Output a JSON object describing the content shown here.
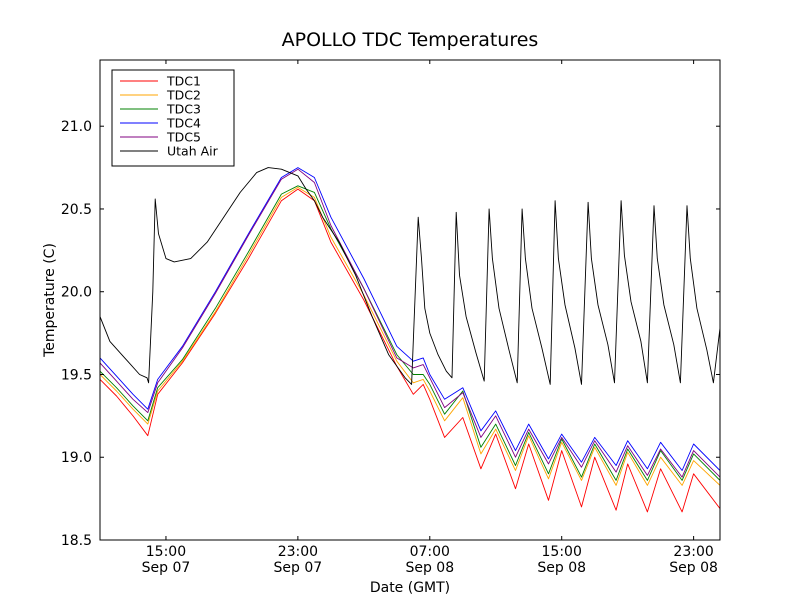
{
  "chart_data": {
    "type": "line",
    "title": "APOLLO TDC Temperatures",
    "xlabel": "Date (GMT)",
    "ylabel": "Temperature (C)",
    "xlim": [
      11.0,
      48.6
    ],
    "ylim": [
      18.5,
      21.4
    ],
    "grid": false,
    "legend_position": "top-left",
    "yticks": [
      {
        "value": 18.5,
        "label": "18.5"
      },
      {
        "value": 19.0,
        "label": "19.0"
      },
      {
        "value": 19.5,
        "label": "19.5"
      },
      {
        "value": 20.0,
        "label": "20.0"
      },
      {
        "value": 20.5,
        "label": "20.5"
      },
      {
        "value": 21.0,
        "label": "21.0"
      }
    ],
    "xticks": [
      {
        "value": 15,
        "time": "15:00",
        "date": "Sep 07"
      },
      {
        "value": 23,
        "time": "23:00",
        "date": "Sep 07"
      },
      {
        "value": 31,
        "time": "07:00",
        "date": "Sep 08"
      },
      {
        "value": 39,
        "time": "15:00",
        "date": "Sep 08"
      },
      {
        "value": 47,
        "time": "23:00",
        "date": "Sep 08"
      }
    ],
    "series": [
      {
        "name": "TDC1",
        "color": "#ff0000",
        "x": [
          11.0,
          12.0,
          13.0,
          13.9,
          14.5,
          16.0,
          18.0,
          20.0,
          22.0,
          23.0,
          24.0,
          25.0,
          27.0,
          29.0,
          30.0,
          30.6,
          31.0,
          31.9,
          33.0,
          34.1,
          35.0,
          36.2,
          37.0,
          38.2,
          39.0,
          40.2,
          41.0,
          42.3,
          43.0,
          44.2,
          45.0,
          46.3,
          47.0,
          48.6
        ],
        "y": [
          19.47,
          19.37,
          19.25,
          19.13,
          19.38,
          19.57,
          19.87,
          20.2,
          20.55,
          20.62,
          20.55,
          20.3,
          19.95,
          19.55,
          19.38,
          19.44,
          19.35,
          19.12,
          19.24,
          18.93,
          19.14,
          18.81,
          19.08,
          18.74,
          19.04,
          18.7,
          19.0,
          18.68,
          18.96,
          18.67,
          18.93,
          18.67,
          18.9,
          18.69
        ]
      },
      {
        "name": "TDC2",
        "color": "#ffa500",
        "x": [
          11.0,
          12.0,
          13.0,
          13.9,
          14.5,
          16.0,
          18.0,
          20.0,
          22.0,
          23.0,
          24.0,
          25.0,
          27.0,
          29.0,
          30.0,
          30.6,
          31.0,
          31.9,
          33.0,
          34.1,
          35.0,
          36.2,
          37.0,
          38.2,
          39.0,
          40.2,
          41.0,
          42.3,
          43.0,
          44.2,
          45.0,
          46.3,
          47.0,
          48.6
        ],
        "y": [
          19.5,
          19.4,
          19.29,
          19.2,
          19.4,
          19.58,
          19.88,
          20.22,
          20.57,
          20.63,
          20.57,
          20.33,
          19.98,
          19.58,
          19.45,
          19.47,
          19.4,
          19.22,
          19.36,
          19.02,
          19.17,
          18.92,
          19.13,
          18.87,
          19.09,
          18.86,
          19.06,
          18.83,
          19.03,
          18.83,
          19.0,
          18.83,
          18.98,
          18.83
        ]
      },
      {
        "name": "TDC3",
        "color": "#008000",
        "x": [
          11.0,
          12.0,
          13.0,
          13.9,
          14.5,
          16.0,
          18.0,
          20.0,
          22.0,
          23.0,
          24.0,
          25.0,
          27.0,
          29.0,
          30.0,
          30.6,
          31.0,
          31.9,
          33.0,
          34.1,
          35.0,
          36.2,
          37.0,
          38.2,
          39.0,
          40.2,
          41.0,
          42.3,
          43.0,
          44.2,
          45.0,
          46.3,
          47.0,
          48.6
        ],
        "y": [
          19.52,
          19.42,
          19.31,
          19.22,
          19.42,
          19.59,
          19.9,
          20.24,
          20.59,
          20.64,
          20.6,
          20.38,
          20.02,
          19.62,
          19.5,
          19.5,
          19.44,
          19.26,
          19.4,
          19.06,
          19.2,
          18.95,
          19.15,
          18.9,
          19.11,
          18.88,
          19.08,
          18.86,
          19.05,
          18.86,
          19.04,
          18.86,
          19.02,
          18.86
        ]
      },
      {
        "name": "TDC4",
        "color": "#0000ff",
        "x": [
          11.0,
          12.0,
          13.0,
          13.9,
          14.5,
          16.0,
          18.0,
          20.0,
          22.0,
          23.0,
          24.0,
          25.0,
          27.0,
          29.0,
          30.0,
          30.6,
          31.0,
          31.9,
          33.0,
          34.1,
          35.0,
          36.2,
          37.0,
          38.2,
          39.0,
          40.2,
          41.0,
          42.3,
          43.0,
          44.2,
          45.0,
          46.3,
          47.0,
          48.6
        ],
        "y": [
          19.6,
          19.49,
          19.38,
          19.29,
          19.47,
          19.67,
          20.0,
          20.35,
          20.69,
          20.75,
          20.69,
          20.45,
          20.08,
          19.67,
          19.58,
          19.6,
          19.5,
          19.35,
          19.42,
          19.16,
          19.28,
          19.04,
          19.2,
          18.99,
          19.14,
          18.97,
          19.12,
          18.95,
          19.1,
          18.93,
          19.09,
          18.92,
          19.08,
          18.92
        ]
      },
      {
        "name": "TDC5",
        "color": "#800080",
        "x": [
          11.0,
          12.0,
          13.0,
          13.9,
          14.5,
          16.0,
          18.0,
          20.0,
          22.0,
          23.0,
          24.0,
          25.0,
          27.0,
          29.0,
          30.0,
          30.6,
          31.0,
          31.9,
          33.0,
          34.1,
          35.0,
          36.2,
          37.0,
          38.2,
          39.0,
          40.2,
          41.0,
          42.3,
          43.0,
          44.2,
          45.0,
          46.3,
          47.0,
          48.6
        ],
        "y": [
          19.57,
          19.46,
          19.35,
          19.27,
          19.45,
          19.66,
          19.99,
          20.34,
          20.68,
          20.74,
          20.66,
          20.4,
          20.02,
          19.6,
          19.54,
          19.56,
          19.48,
          19.3,
          19.39,
          19.12,
          19.25,
          19.0,
          19.17,
          18.96,
          19.12,
          18.94,
          19.1,
          18.91,
          19.07,
          18.89,
          19.05,
          18.88,
          19.04,
          18.88
        ]
      },
      {
        "name": "Utah Air",
        "color": "#000000",
        "x": [
          11.0,
          11.6,
          12.5,
          13.4,
          13.85,
          13.95,
          14.2,
          14.35,
          14.55,
          15.0,
          15.5,
          16.5,
          17.5,
          18.5,
          19.5,
          20.5,
          21.2,
          22.0,
          23.0,
          23.5,
          24.0,
          24.5,
          25.5,
          26.5,
          27.5,
          28.5,
          29.5,
          29.9,
          30.3,
          30.5,
          30.7,
          31.0,
          31.5,
          32.0,
          32.35,
          32.6,
          32.8,
          33.2,
          33.8,
          34.3,
          34.6,
          34.8,
          35.2,
          35.8,
          36.3,
          36.6,
          36.8,
          37.2,
          37.8,
          38.3,
          38.6,
          38.8,
          39.2,
          39.8,
          40.2,
          40.6,
          40.8,
          41.2,
          41.8,
          42.2,
          42.6,
          42.8,
          43.2,
          43.8,
          44.2,
          44.6,
          44.8,
          45.2,
          45.8,
          46.2,
          46.6,
          46.8,
          47.2,
          47.8,
          48.2,
          48.6
        ],
        "y": [
          19.85,
          19.7,
          19.6,
          19.5,
          19.48,
          19.45,
          20.0,
          20.56,
          20.35,
          20.2,
          20.18,
          20.2,
          20.3,
          20.45,
          20.6,
          20.72,
          20.75,
          20.74,
          20.7,
          20.62,
          20.55,
          20.45,
          20.3,
          20.1,
          19.85,
          19.62,
          19.48,
          19.44,
          20.45,
          20.2,
          19.9,
          19.75,
          19.62,
          19.52,
          19.48,
          20.48,
          20.1,
          19.85,
          19.63,
          19.46,
          20.5,
          20.2,
          19.9,
          19.65,
          19.45,
          20.5,
          20.2,
          19.9,
          19.66,
          19.44,
          20.55,
          20.2,
          19.92,
          19.66,
          19.44,
          20.54,
          20.2,
          19.92,
          19.68,
          19.45,
          20.55,
          20.22,
          19.94,
          19.7,
          19.45,
          20.52,
          20.2,
          19.92,
          19.68,
          19.45,
          20.52,
          20.2,
          19.9,
          19.65,
          19.45,
          19.78
        ]
      }
    ]
  }
}
